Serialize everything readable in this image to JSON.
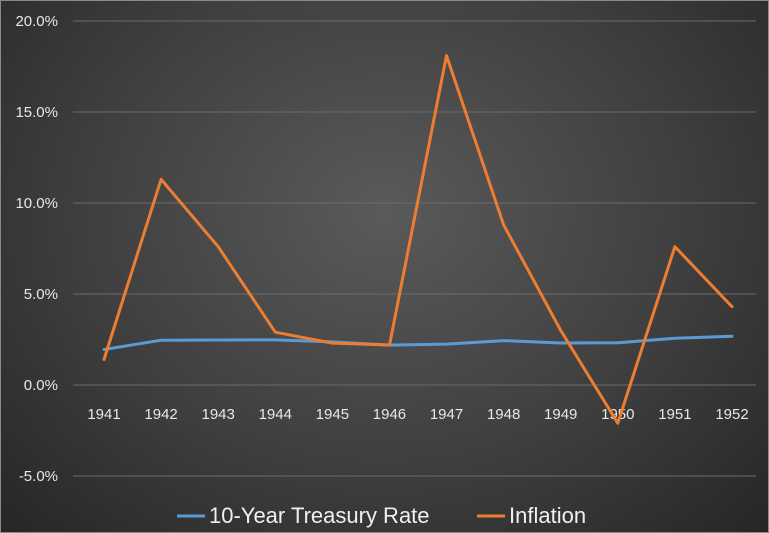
{
  "chart_data": {
    "type": "line",
    "x": [
      "1941",
      "1942",
      "1943",
      "1944",
      "1945",
      "1946",
      "1947",
      "1948",
      "1949",
      "1950",
      "1951",
      "1952"
    ],
    "ylim": [
      -5.0,
      20.0
    ],
    "yticks": [
      "20.0%",
      "15.0%",
      "10.0%",
      "5.0%",
      "0.0%",
      "-5.0%"
    ],
    "ytick_values": [
      20,
      15,
      10,
      5,
      0,
      -5
    ],
    "grid": true,
    "legend_position": "bottom",
    "series": [
      {
        "name": "10-Year Treasury Rate",
        "color": "#5b9bd5",
        "values": [
          1.95,
          2.46,
          2.47,
          2.48,
          2.37,
          2.19,
          2.25,
          2.44,
          2.31,
          2.32,
          2.57,
          2.68
        ]
      },
      {
        "name": "Inflation",
        "color": "#ed7d31",
        "values": [
          1.4,
          11.3,
          7.6,
          2.9,
          2.3,
          2.2,
          18.1,
          8.8,
          3.0,
          -2.1,
          7.6,
          4.3
        ]
      }
    ]
  }
}
